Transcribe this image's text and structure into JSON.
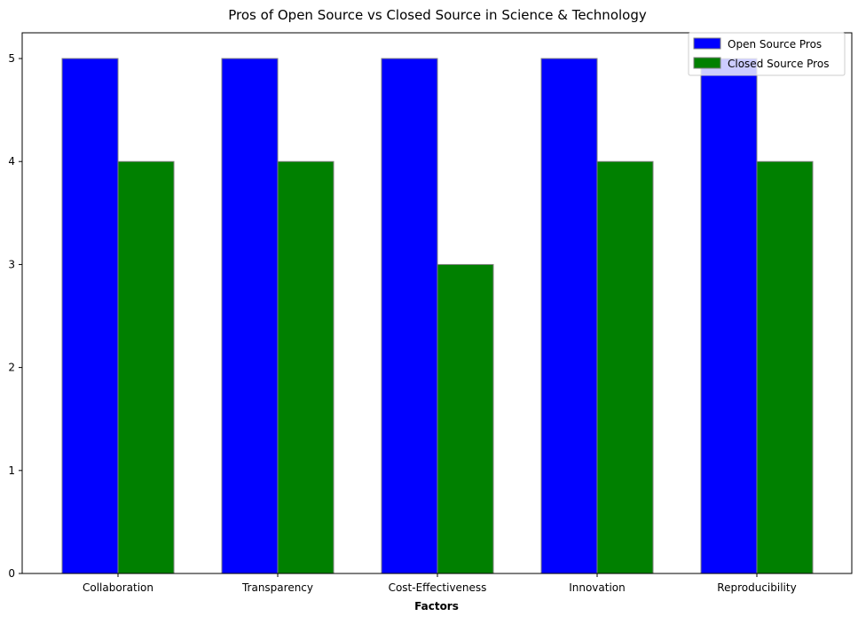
{
  "chart_data": {
    "type": "bar",
    "title": "Pros of Open Source vs Closed Source in Science & Technology",
    "xlabel": "Factors",
    "ylabel": "",
    "categories": [
      "Collaboration",
      "Transparency",
      "Cost-Effectiveness",
      "Innovation",
      "Reproducibility"
    ],
    "series": [
      {
        "name": "Open Source Pros",
        "values": [
          5,
          5,
          5,
          5,
          5
        ],
        "color": "#0000ff"
      },
      {
        "name": "Closed Source Pros",
        "values": [
          4,
          4,
          3,
          4,
          4
        ],
        "color": "#008000"
      }
    ],
    "ylim": [
      0,
      5.25
    ],
    "yticks": [
      0,
      1,
      2,
      3,
      4,
      5
    ],
    "bar_edge_color": "#808080",
    "grid": false,
    "legend_position": "top-right"
  }
}
